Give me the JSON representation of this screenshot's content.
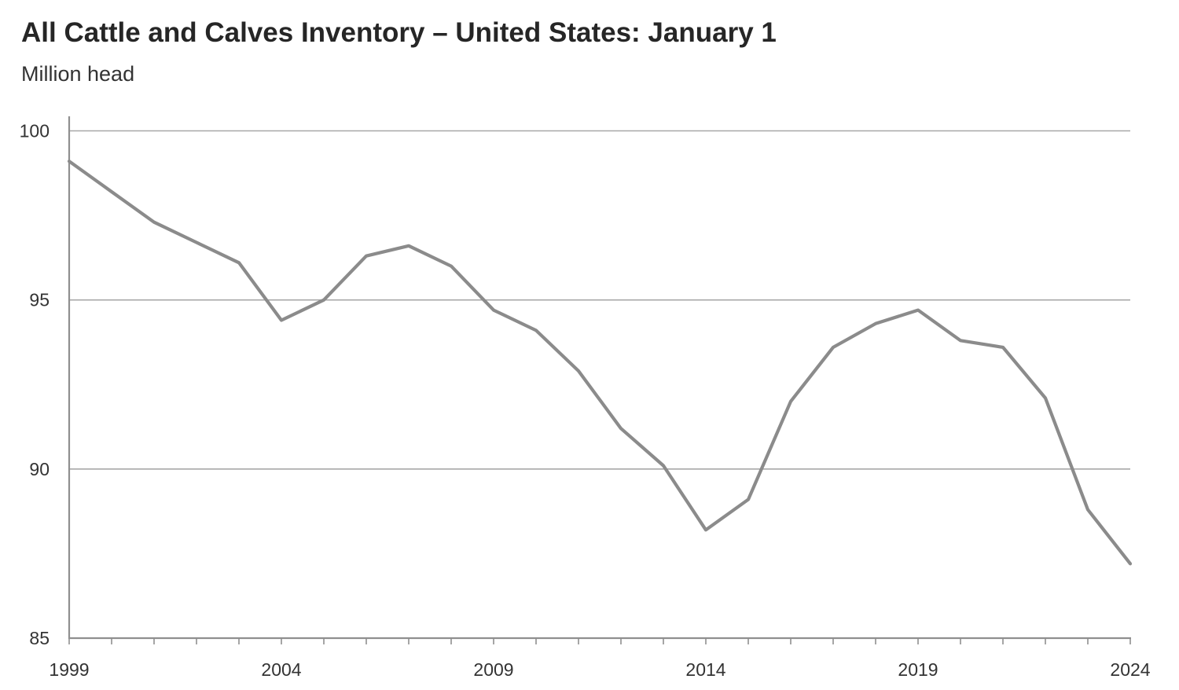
{
  "header": {
    "title": "All Cattle and Calves Inventory – United States: January 1",
    "subtitle": "Million head"
  },
  "chart_data": {
    "type": "line",
    "title": "All Cattle and Calves Inventory – United States: January 1",
    "ylabel": "Million head",
    "xlabel": "",
    "series_name": "All cattle and calves inventory, January 1 (million head)",
    "x": [
      1999,
      2000,
      2001,
      2002,
      2003,
      2004,
      2005,
      2006,
      2007,
      2008,
      2009,
      2010,
      2011,
      2012,
      2013,
      2014,
      2015,
      2016,
      2017,
      2018,
      2019,
      2020,
      2021,
      2022,
      2023,
      2024
    ],
    "values": [
      99.1,
      98.2,
      97.3,
      96.7,
      96.1,
      94.4,
      95.0,
      96.3,
      96.6,
      96.0,
      94.7,
      94.1,
      92.9,
      91.2,
      90.1,
      88.2,
      89.1,
      92.0,
      93.6,
      94.3,
      94.7,
      93.8,
      93.6,
      92.1,
      88.8,
      87.2
    ],
    "xlim": [
      1999,
      2024
    ],
    "ylim": [
      85,
      100
    ],
    "xticks": [
      1999,
      2004,
      2009,
      2014,
      2019,
      2024
    ],
    "yticks": [
      100,
      95,
      90,
      85
    ],
    "grid": "horizontal gridlines at each y tick",
    "legend": "none",
    "colors": {
      "line": "#8b8b8b",
      "grid": "#a8a8a8",
      "axis": "#8f8f8f",
      "tick_text": "#333333",
      "title_text": "#262626",
      "background": "#ffffff"
    }
  }
}
